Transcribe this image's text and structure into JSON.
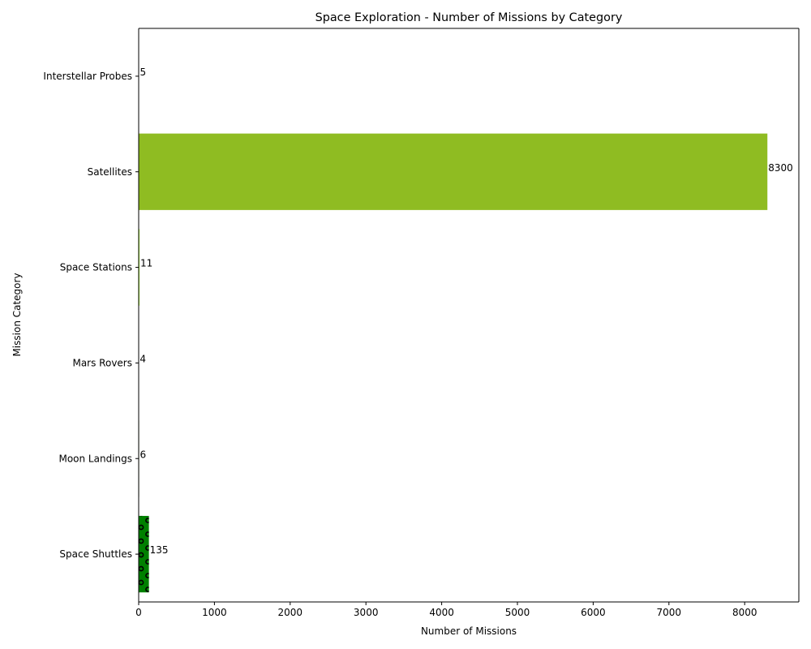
{
  "chart_data": {
    "type": "bar",
    "orientation": "horizontal",
    "title": "Space Exploration - Number of Missions by Category",
    "xlabel": "Number of Missions",
    "ylabel": "Mission Category",
    "categories": [
      "Space Shuttles",
      "Moon Landings",
      "Mars Rovers",
      "Space Stations",
      "Satellites",
      "Interstellar Probes"
    ],
    "values": [
      135,
      6,
      4,
      11,
      8300,
      5
    ],
    "data_labels": [
      "135",
      "6",
      "4",
      "11",
      "8300",
      "5"
    ],
    "colors": [
      "#008000",
      "#6b8e23",
      "#9acd32",
      "#adff2f",
      "#8fbc22",
      "#556b2f"
    ],
    "hatch": [
      "o",
      "",
      "",
      "",
      "",
      ""
    ],
    "xlim": [
      0,
      8715
    ],
    "xticks": [
      0,
      1000,
      2000,
      3000,
      4000,
      5000,
      6000,
      7000,
      8000
    ],
    "grid": false,
    "legend": "none"
  }
}
